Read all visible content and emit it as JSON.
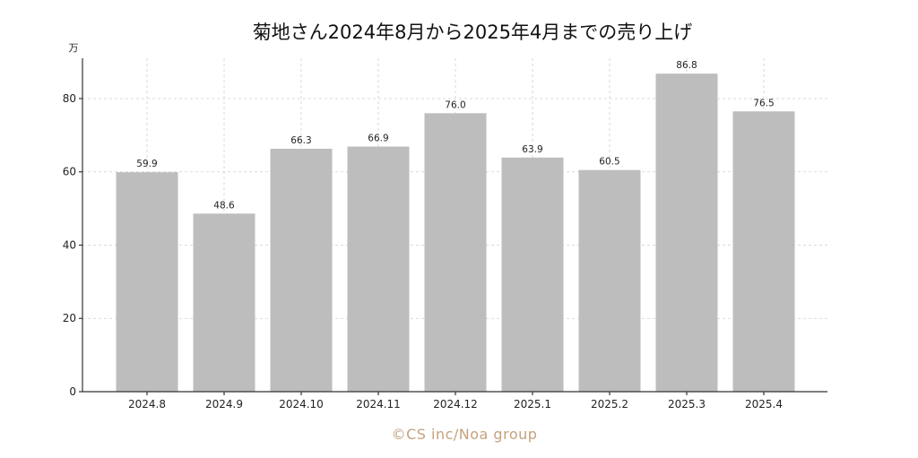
{
  "chart_data": {
    "type": "bar",
    "title": "菊地さん2024年8月から2025年4月までの売り上げ",
    "ylabel": "万",
    "xlabel": "",
    "categories": [
      "2024.8",
      "2024.9",
      "2024.10",
      "2024.11",
      "2024.12",
      "2025.1",
      "2025.2",
      "2025.3",
      "2025.4"
    ],
    "values": [
      59.9,
      48.6,
      66.3,
      66.9,
      76.0,
      63.9,
      60.5,
      86.8,
      76.5
    ],
    "data_labels": [
      "59.9",
      "48.6",
      "66.3",
      "66.9",
      "76.0",
      "63.9",
      "60.5",
      "86.8",
      "76.5"
    ],
    "ylim": [
      0,
      91
    ],
    "yticks": [
      0,
      20,
      40,
      60,
      80
    ],
    "grid": true,
    "bar_color": "#bdbdbd"
  },
  "credit": "©CS inc/Noa group"
}
